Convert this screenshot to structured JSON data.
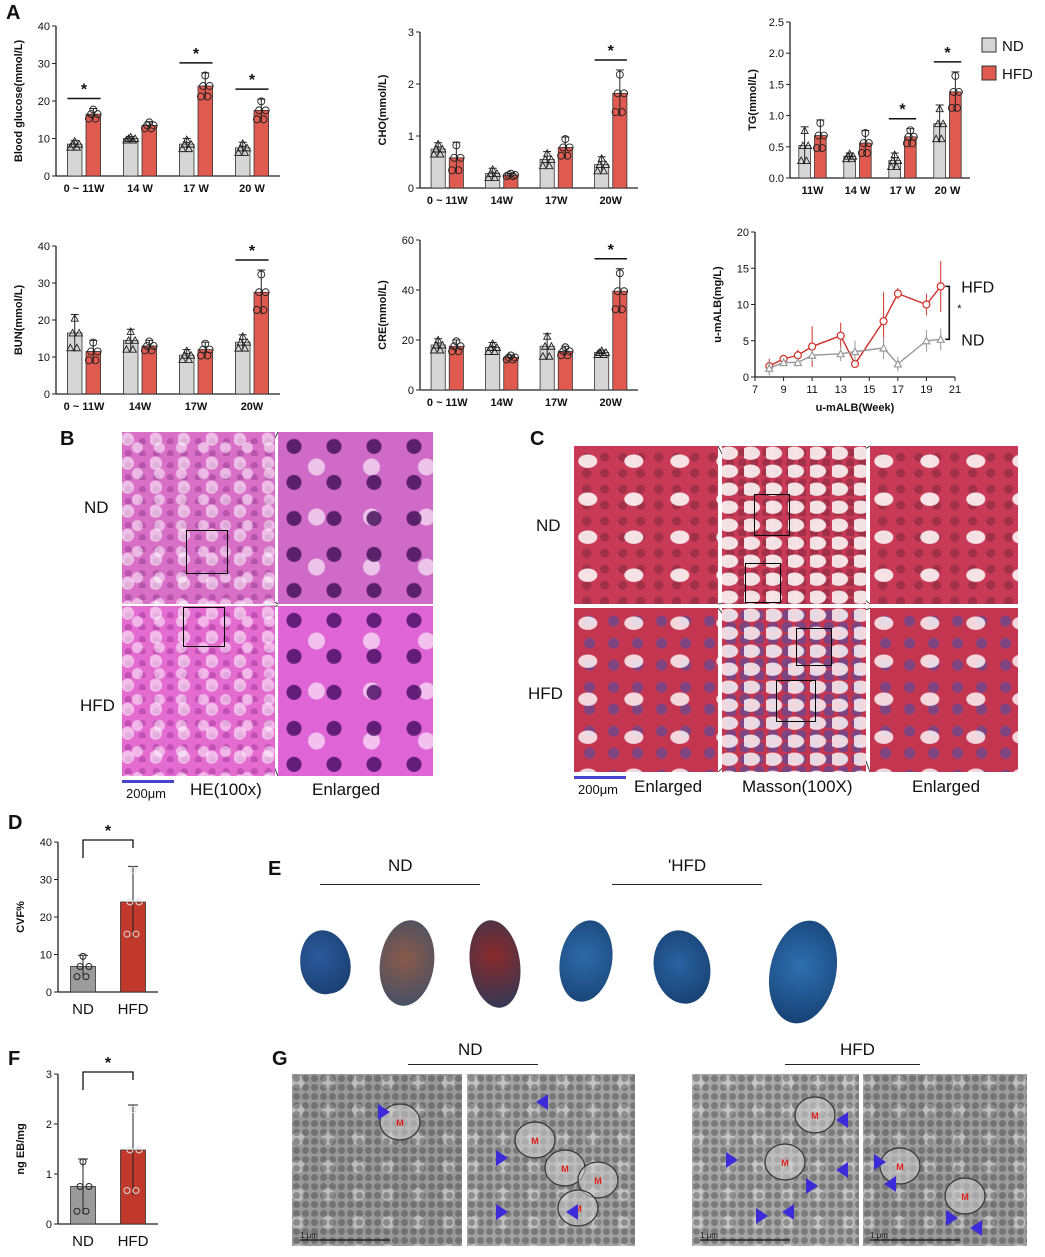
{
  "panels": {
    "a": "A",
    "b": "B",
    "c": "C",
    "d": "D",
    "e": "E",
    "f": "F",
    "g": "G"
  },
  "colors": {
    "nd": "#d6d6d6",
    "hfd": "#e05a4f",
    "hfd_dark": "#c0392b",
    "scale": "#4444cc",
    "arrow": "#3b2bd9"
  },
  "chart_data": [
    {
      "id": "glucose",
      "type": "bar",
      "ylabel": "Blood glucose(mmol/L)",
      "categories": [
        "0 ~ 11W",
        "14 W",
        "17 W",
        "20 W"
      ],
      "series": [
        {
          "name": "ND",
          "values": [
            8.5,
            10,
            8.5,
            7.5
          ]
        },
        {
          "name": "HFD",
          "values": [
            16.5,
            13.5,
            24,
            17.5
          ]
        }
      ],
      "errors": {
        "ND": [
          1,
          0.5,
          1.5,
          1.5
        ],
        "HFD": [
          1.5,
          1,
          3.5,
          3
        ]
      },
      "ylim": [
        0,
        40
      ],
      "yticks": [
        0,
        10,
        20,
        30,
        40
      ],
      "sig": [
        0,
        2,
        3
      ],
      "sig_label": "*"
    },
    {
      "id": "cho",
      "type": "bar",
      "ylabel": "CHO(mmol/L)",
      "categories": [
        "0 ~ 11W",
        "14W",
        "17W",
        "20W"
      ],
      "series": [
        {
          "name": "ND",
          "values": [
            0.75,
            0.28,
            0.55,
            0.45
          ]
        },
        {
          "name": "HFD",
          "values": [
            0.58,
            0.25,
            0.78,
            1.82
          ]
        }
      ],
      "errors": {
        "ND": [
          0.12,
          0.1,
          0.15,
          0.15
        ],
        "HFD": [
          0.3,
          0.03,
          0.2,
          0.45
        ]
      },
      "ylim": [
        0,
        3
      ],
      "yticks": [
        0,
        1,
        2,
        3
      ],
      "sig": [
        3
      ],
      "sig_label": "*"
    },
    {
      "id": "tg",
      "type": "bar",
      "ylabel": "TG(mmol/L)",
      "categories": [
        "11W",
        "14 W",
        "17 W",
        "20  W"
      ],
      "series": [
        {
          "name": "ND",
          "values": [
            0.52,
            0.35,
            0.28,
            0.87
          ]
        },
        {
          "name": "HFD",
          "values": [
            0.68,
            0.56,
            0.66,
            1.38
          ]
        }
      ],
      "errors": {
        "ND": [
          0.3,
          0.05,
          0.12,
          0.3
        ],
        "HFD": [
          0.25,
          0.2,
          0.13,
          0.32
        ]
      },
      "ylim": [
        0,
        2.5
      ],
      "yticks": [
        0.0,
        0.5,
        1.0,
        1.5,
        2.0,
        2.5
      ],
      "sig": [
        2,
        3
      ],
      "sig_label": "*",
      "legend": [
        "ND",
        "HFD"
      ]
    },
    {
      "id": "bun",
      "type": "bar",
      "ylabel": "BUN(mmol/L)",
      "categories": [
        "0 ~ 11W",
        "14W",
        "17W",
        "20W"
      ],
      "series": [
        {
          "name": "ND",
          "values": [
            16.5,
            14.5,
            10.5,
            14
          ]
        },
        {
          "name": "HFD",
          "values": [
            11.5,
            13,
            12,
            27.5
          ]
        }
      ],
      "errors": {
        "ND": [
          5,
          3,
          1.5,
          2
        ],
        "HFD": [
          3,
          1.5,
          2,
          6
        ]
      },
      "ylim": [
        0,
        40
      ],
      "yticks": [
        0,
        10,
        20,
        30,
        40
      ],
      "sig": [
        3
      ],
      "sig_label": "*"
    },
    {
      "id": "cre",
      "type": "bar",
      "ylabel": "CRE(mmol/L)",
      "categories": [
        "0 ~ 11W",
        "14W",
        "17W",
        "20W"
      ],
      "series": [
        {
          "name": "ND",
          "values": [
            18,
            17,
            17.5,
            15
          ]
        },
        {
          "name": "HFD",
          "values": [
            17.5,
            13,
            15.5,
            39.5
          ]
        }
      ],
      "errors": {
        "ND": [
          2.5,
          2,
          5,
          1
        ],
        "HFD": [
          2.5,
          1,
          2,
          9
        ]
      },
      "ylim": [
        0,
        60
      ],
      "yticks": [
        0,
        20,
        40,
        60
      ],
      "sig": [
        3
      ],
      "sig_label": "*"
    },
    {
      "id": "malb",
      "type": "line",
      "ylabel": "u-mALB(mg/L)",
      "xlabel": "u-mALB(Week)",
      "xlim": [
        7,
        21
      ],
      "xticks": [
        7,
        9,
        11,
        13,
        15,
        17,
        19,
        21
      ],
      "ylim": [
        0,
        20
      ],
      "yticks": [
        0,
        5,
        10,
        15,
        20
      ],
      "series": [
        {
          "name": "HFD",
          "x": [
            8,
            9,
            10,
            11,
            13,
            14,
            16,
            17,
            19,
            20
          ],
          "y": [
            1.5,
            2.5,
            3,
            4.2,
            5.7,
            1.8,
            7.7,
            11.5,
            10,
            12.5
          ],
          "err": [
            1,
            0.5,
            0.8,
            2.8,
            1.8,
            0.3,
            4,
            0.8,
            1.5,
            3.5
          ]
        },
        {
          "name": "ND",
          "x": [
            8,
            9,
            10,
            11,
            13,
            14,
            16,
            17,
            19,
            20
          ],
          "y": [
            1.2,
            2,
            2,
            3,
            3.2,
            3.5,
            4,
            1.8,
            5,
            5.2
          ],
          "err": [
            1,
            0.5,
            0.5,
            0.8,
            1,
            1.5,
            1.5,
            1,
            1.5,
            1.5
          ]
        }
      ],
      "labels": {
        "hfd": "HFD",
        "nd": "ND",
        "sig": "*"
      }
    },
    {
      "id": "cvf",
      "type": "bar",
      "ylabel": "CVF%",
      "categories": [
        "ND",
        "HFD"
      ],
      "values": [
        6.8,
        24
      ],
      "errors": [
        3,
        9.5
      ],
      "ylim": [
        0,
        40
      ],
      "yticks": [
        0,
        10,
        20,
        30,
        40
      ],
      "sig_label": "*"
    },
    {
      "id": "eb",
      "type": "bar",
      "ylabel": "ng EB/mg",
      "categories": [
        "ND",
        "HFD"
      ],
      "values": [
        0.75,
        1.48
      ],
      "errors": [
        0.55,
        0.9
      ],
      "ylim": [
        0,
        3
      ],
      "yticks": [
        0,
        1,
        2,
        3
      ],
      "sig_label": "*"
    }
  ],
  "panel_b": {
    "nd": "ND",
    "hfd": "HFD",
    "scale": "200μm",
    "stain": "HE(100x)",
    "enlarged": "Enlarged"
  },
  "panel_c": {
    "nd": "ND",
    "hfd": "HFD",
    "scale": "200μm",
    "enlarged_left": "Enlarged",
    "stain": "Masson(100X)",
    "enlarged_right": "Enlarged"
  },
  "panel_e": {
    "nd": "ND",
    "hfd": "'HFD"
  },
  "panel_g": {
    "nd": "ND",
    "hfd": "HFD",
    "marker": "M",
    "scalebar": "1 μm"
  }
}
